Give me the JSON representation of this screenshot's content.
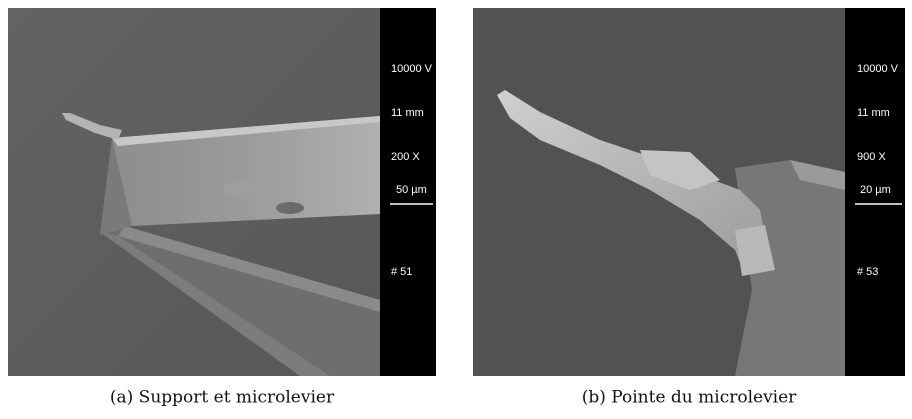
{
  "panels": [
    {
      "caption": "(a) Support et microlevier",
      "voltage": "10000 V",
      "working_distance": "11 mm",
      "magnification": "200 X",
      "scale": "50 µm",
      "image_number": "# 51"
    },
    {
      "caption": "(b) Pointe du microlevier",
      "voltage": "10000 V",
      "working_distance": "11 mm",
      "magnification": "900 X",
      "scale": "20 µm",
      "image_number": "# 53"
    }
  ]
}
